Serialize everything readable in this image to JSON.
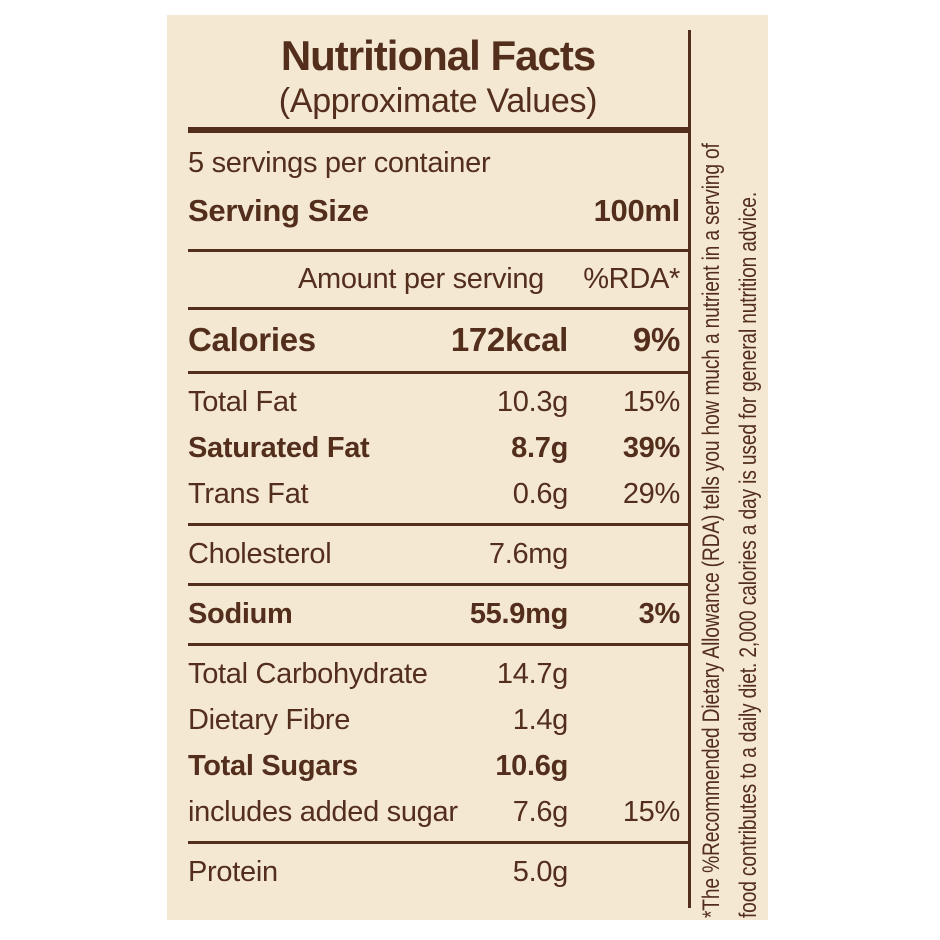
{
  "colors": {
    "page_bg": "#ffffff",
    "panel_bg": "#f4e8d2",
    "ink": "#532e1d"
  },
  "header": {
    "title": "Nutritional Facts",
    "subtitle": "(Approximate Values)"
  },
  "serving": {
    "servings_per_container": "5 servings per container",
    "size_label": "Serving Size",
    "size_value": "100ml"
  },
  "columns": {
    "amount_header": "Amount per serving",
    "rda_header": "%RDA*"
  },
  "groups": [
    {
      "rows": [
        {
          "label": "Calories",
          "amount": "172kcal",
          "rda": "9%",
          "bold": true,
          "large": true
        }
      ]
    },
    {
      "rows": [
        {
          "label": "Total Fat",
          "amount": "10.3g",
          "rda": "15%",
          "bold": false
        },
        {
          "label": "Saturated Fat",
          "amount": "8.7g",
          "rda": "39%",
          "bold": true
        },
        {
          "label": "Trans Fat",
          "amount": "0.6g",
          "rda": "29%",
          "bold": false
        }
      ]
    },
    {
      "rows": [
        {
          "label": "Cholesterol",
          "amount": "7.6mg",
          "rda": "",
          "bold": false
        }
      ]
    },
    {
      "rows": [
        {
          "label": "Sodium",
          "amount": "55.9mg",
          "rda": "3%",
          "bold": true
        }
      ]
    },
    {
      "rows": [
        {
          "label": "Total Carbohydrate",
          "amount": "14.7g",
          "rda": "",
          "bold": false
        },
        {
          "label": "Dietary Fibre",
          "amount": "1.4g",
          "rda": "",
          "bold": false
        },
        {
          "label": "Total Sugars",
          "amount": "10.6g",
          "rda": "",
          "bold": true
        },
        {
          "label": "includes added sugar",
          "amount": "7.6g",
          "rda": "15%",
          "bold": false
        }
      ]
    },
    {
      "rows": [
        {
          "label": "Protein",
          "amount": "5.0g",
          "rda": "",
          "bold": false
        }
      ]
    }
  ],
  "footnote": {
    "line1": "*The %Recommended Dietary Allowance (RDA) tells you how much a nutrient in a serving of",
    "line2": "food contributes to a daily diet. 2,000 calories a day is used for general nutrition advice."
  }
}
